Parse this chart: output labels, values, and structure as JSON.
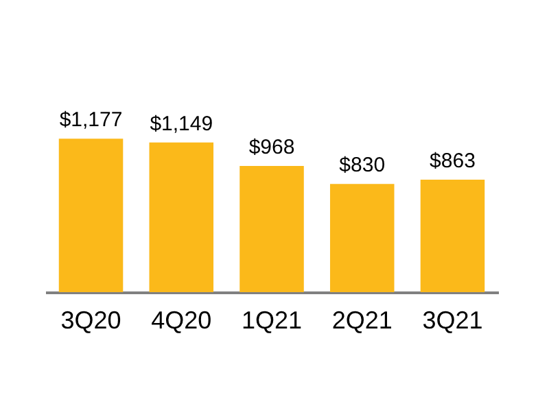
{
  "chart_data": {
    "type": "bar",
    "categories": [
      "3Q20",
      "4Q20",
      "1Q21",
      "2Q21",
      "3Q21"
    ],
    "values": [
      1177,
      1149,
      968,
      830,
      863
    ],
    "value_labels": [
      "$1,177",
      "$1,149",
      "$968",
      "$830",
      "$863"
    ],
    "color": "#fbb91a"
  }
}
